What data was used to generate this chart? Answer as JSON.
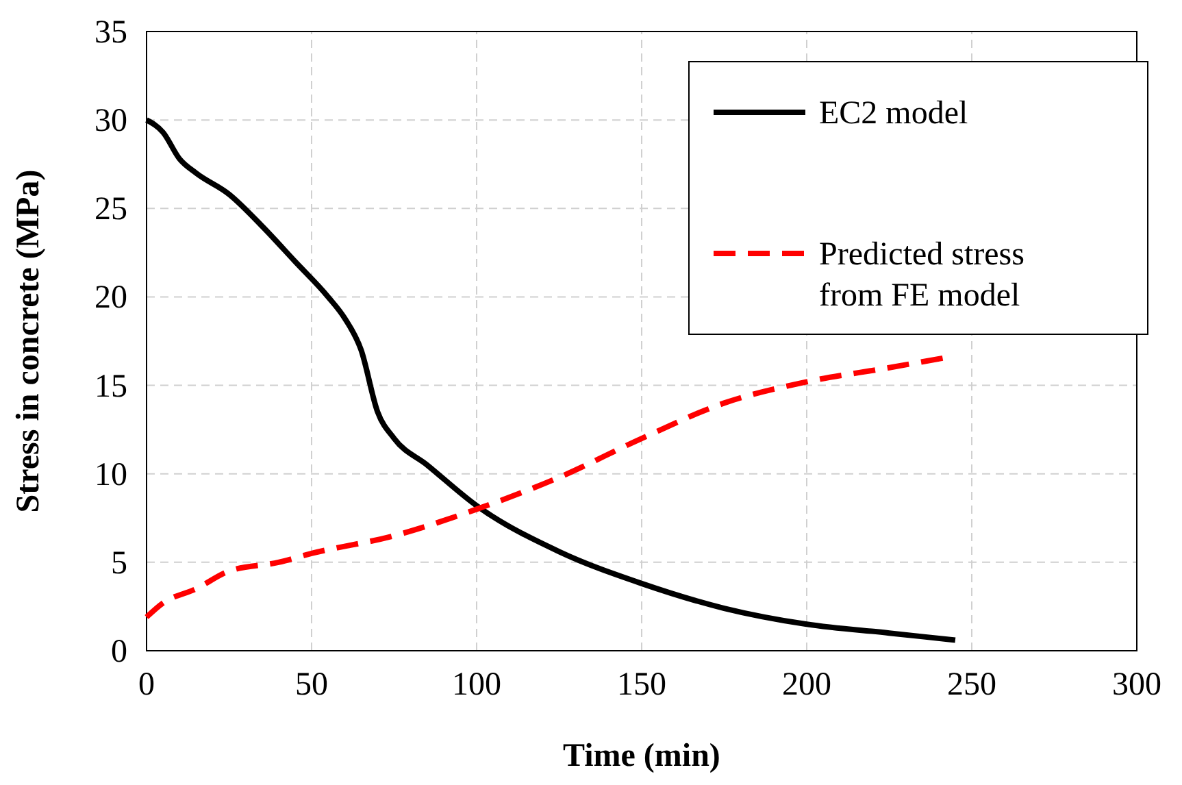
{
  "chart_data": {
    "type": "line",
    "xlabel": "Time (min)",
    "ylabel": "Stress in concrete (MPa)",
    "xlim": [
      0,
      300
    ],
    "xticks": [
      0,
      50,
      100,
      150,
      200,
      250,
      300
    ],
    "ylim": [
      0,
      35
    ],
    "yticks": [
      0,
      5,
      10,
      15,
      20,
      25,
      30,
      35
    ],
    "grid": true,
    "legend": "top right",
    "series": [
      {
        "name": "EC2 model",
        "color": "#000000",
        "line_style": "solid",
        "x": [
          0,
          5,
          10,
          15,
          25,
          35,
          45,
          55,
          60,
          65,
          70,
          75,
          85,
          100,
          125,
          150,
          175,
          200,
          225,
          245
        ],
        "values": [
          30,
          29.3,
          27.8,
          27,
          25.8,
          24,
          22,
          20,
          18.8,
          17,
          13.5,
          12,
          10.5,
          8.2,
          5.6,
          3.8,
          2.4,
          1.5,
          1,
          0.6
        ]
      },
      {
        "name": "Predicted stress from FE model",
        "color": "#ff0000",
        "line_style": "dashed",
        "x": [
          0,
          5,
          15,
          25,
          40,
          50,
          75,
          100,
          125,
          150,
          175,
          200,
          225,
          243
        ],
        "values": [
          1.9,
          2.7,
          3.5,
          4.5,
          5,
          5.5,
          6.5,
          8,
          9.8,
          12,
          14,
          15.2,
          16,
          16.6
        ]
      }
    ]
  }
}
